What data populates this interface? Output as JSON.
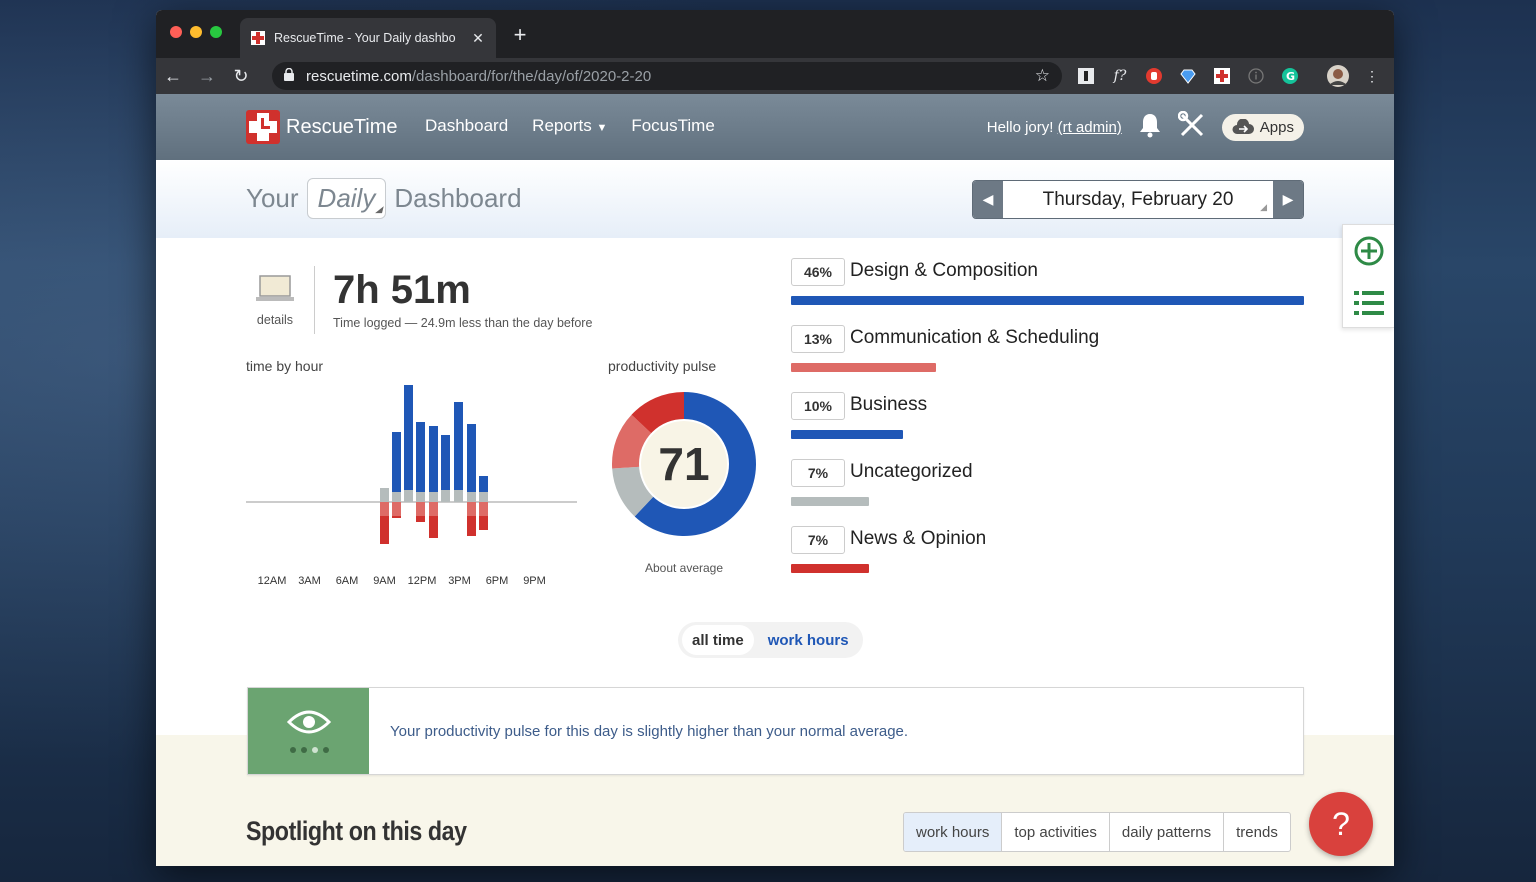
{
  "browser": {
    "tab_title": "RescueTime - Your Daily dashbo",
    "tab_close": "✕",
    "new_tab": "+",
    "url_host": "rescuetime.com",
    "url_path": "/dashboard/for/the/day/of/2020-2-20"
  },
  "header": {
    "brand": "RescueTime",
    "nav": [
      "Dashboard",
      "Reports",
      "FocusTime"
    ],
    "greeting": "Hello jory!",
    "admin_link": "(rt admin)",
    "apps_label": "Apps"
  },
  "title": {
    "prefix": "Your",
    "period": "Daily",
    "suffix": "Dashboard",
    "date": "Thursday, February 20"
  },
  "summary": {
    "details_label": "details",
    "time_logged": "7h 51m",
    "time_sub": "Time logged — 24.9m less than the day before"
  },
  "time_by_hour": {
    "label": "time by hour",
    "tick_labels": [
      "12AM",
      "3AM",
      "6AM",
      "9AM",
      "12PM",
      "3PM",
      "6PM",
      "9PM"
    ]
  },
  "pulse": {
    "label": "productivity pulse",
    "score": "71",
    "caption": "About average"
  },
  "categories": [
    {
      "pct": "46%",
      "name": "Design & Composition",
      "value": 46,
      "color": "#1f57b6"
    },
    {
      "pct": "13%",
      "name": "Communication & Scheduling",
      "value": 13,
      "color": "#de6b66"
    },
    {
      "pct": "10%",
      "name": "Business",
      "value": 10,
      "color": "#1f57b6"
    },
    {
      "pct": "7%",
      "name": "Uncategorized",
      "value": 7,
      "color": "#b5bcbc"
    },
    {
      "pct": "7%",
      "name": "News & Opinion",
      "value": 7,
      "color": "#d0312d"
    }
  ],
  "toggle": {
    "all_time": "all time",
    "work_hours": "work hours"
  },
  "insight": {
    "text": "Your productivity pulse for this day is slightly higher than your normal average."
  },
  "spotlight": {
    "title": "Spotlight on this day",
    "tabs": [
      "work hours",
      "top activities",
      "daily patterns",
      "trends"
    ]
  },
  "help_label": "?",
  "colors": {
    "very_productive": "#1f57b6",
    "productive": "#2f6fd1",
    "neutral": "#b5bcbc",
    "distracting": "#de6b66",
    "very_distracting": "#d0312d"
  }
}
